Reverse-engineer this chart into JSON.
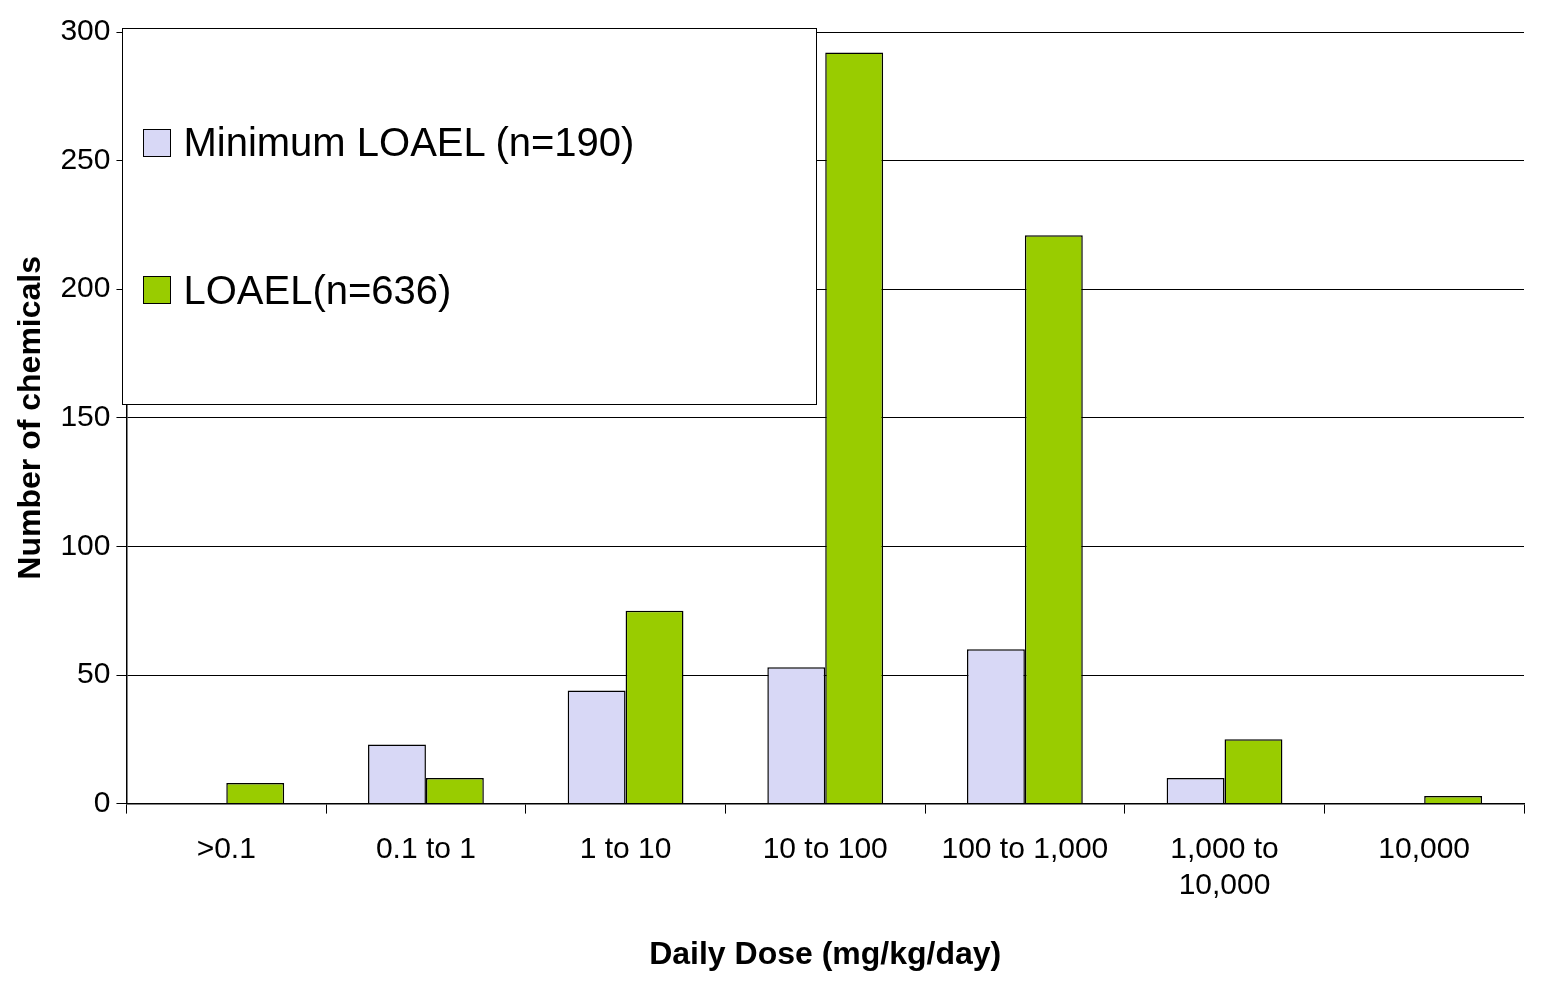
{
  "chart_data": {
    "type": "bar",
    "xlabel": "Daily Dose (mg/kg/day)",
    "ylabel": "Number of chemicals",
    "categories": [
      ">0.1",
      "0.1 to 1",
      "1 to 10",
      "10 to 100",
      "100 to 1,000",
      "1,000 to 10,000",
      "10,000"
    ],
    "series": [
      {
        "name": "Minimum LOAEL (n=190)",
        "color": "#d8d8f6",
        "values": [
          0,
          23,
          44,
          53,
          60,
          10,
          0
        ]
      },
      {
        "name": "LOAEL(n=636)",
        "color": "#99cc00",
        "values": [
          8,
          10,
          75,
          292,
          221,
          25,
          3
        ]
      }
    ],
    "ylim": [
      0,
      300
    ],
    "yticks": [
      0,
      50,
      100,
      150,
      200,
      250,
      300
    ],
    "grid": "y",
    "legend": "top left"
  }
}
